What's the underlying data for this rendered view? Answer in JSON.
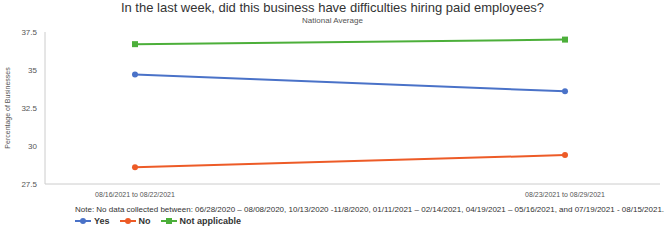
{
  "chart_data": {
    "type": "line",
    "title": "In the last week, did this business have difficulties hiring paid employees?",
    "subtitle": "National Average",
    "y_label": "Percentage of Businesses",
    "annotations": [
      "Note: No data collected between: 06/28/2020 – 08/08/2020, 10/13/2020 -11/8/2020, 01/11/2021 – 02/14/2021, 04/19/2021 – 05/16/2021, and 07/19/2021 - 08/15/2021."
    ],
    "categories": [
      "08/16/2021 to 08/22/2021",
      "08/23/2021 to 08/29/2021"
    ],
    "series": [
      {
        "name": "Yes",
        "color": "#4a72c8",
        "marker": "circle",
        "values": [
          34.7,
          33.6
        ]
      },
      {
        "name": "No",
        "color": "#ed5b27",
        "marker": "circle",
        "values": [
          28.6,
          29.4
        ]
      },
      {
        "name": "Not applicable",
        "color": "#4caf3a",
        "marker": "square",
        "values": [
          36.7,
          37.0
        ]
      }
    ],
    "ylim": [
      27.5,
      37.5
    ],
    "yticks": [
      27.5,
      30,
      32.5,
      35,
      37.5
    ],
    "grid": false,
    "legend": "bottom-left"
  }
}
